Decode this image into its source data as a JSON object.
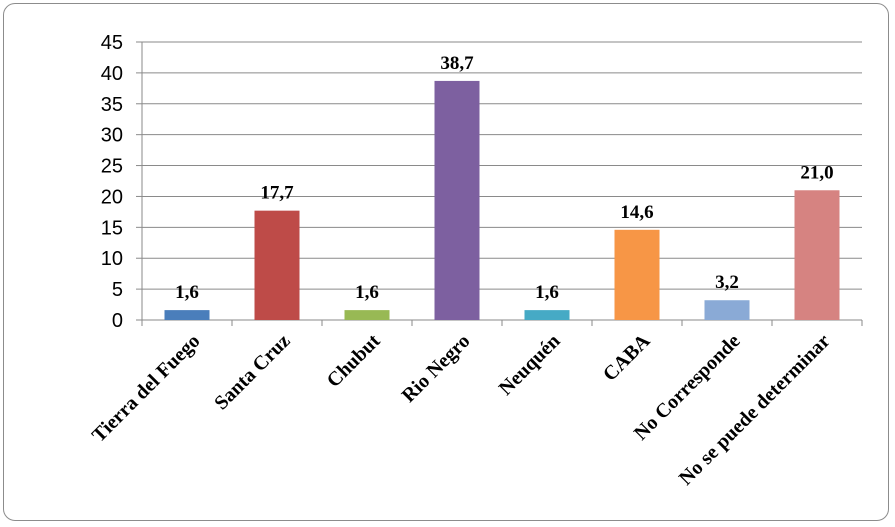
{
  "chart_data": {
    "type": "bar",
    "categories": [
      "Tierra del Fuego",
      "Santa Cruz",
      "Chubut",
      "Rio Negro",
      "Neuquén",
      "CABA",
      "No Corresponde",
      "No se puede determinar"
    ],
    "values": [
      1.6,
      17.7,
      1.6,
      38.7,
      1.6,
      14.6,
      3.2,
      21.0
    ],
    "value_labels": [
      "1,6",
      "17,7",
      "1,6",
      "38,7",
      "1,6",
      "14,6",
      "3,2",
      "21,0"
    ],
    "colors": [
      "#4a7ebb",
      "#be4b48",
      "#98b954",
      "#7d60a0",
      "#46aac5",
      "#f79646",
      "#8aaad6",
      "#d68381"
    ],
    "ylim": [
      0,
      45
    ],
    "yticks": [
      0,
      5,
      10,
      15,
      20,
      25,
      30,
      35,
      40,
      45
    ],
    "grid": true,
    "legend": "none",
    "title": "",
    "xlabel": "",
    "ylabel": ""
  }
}
